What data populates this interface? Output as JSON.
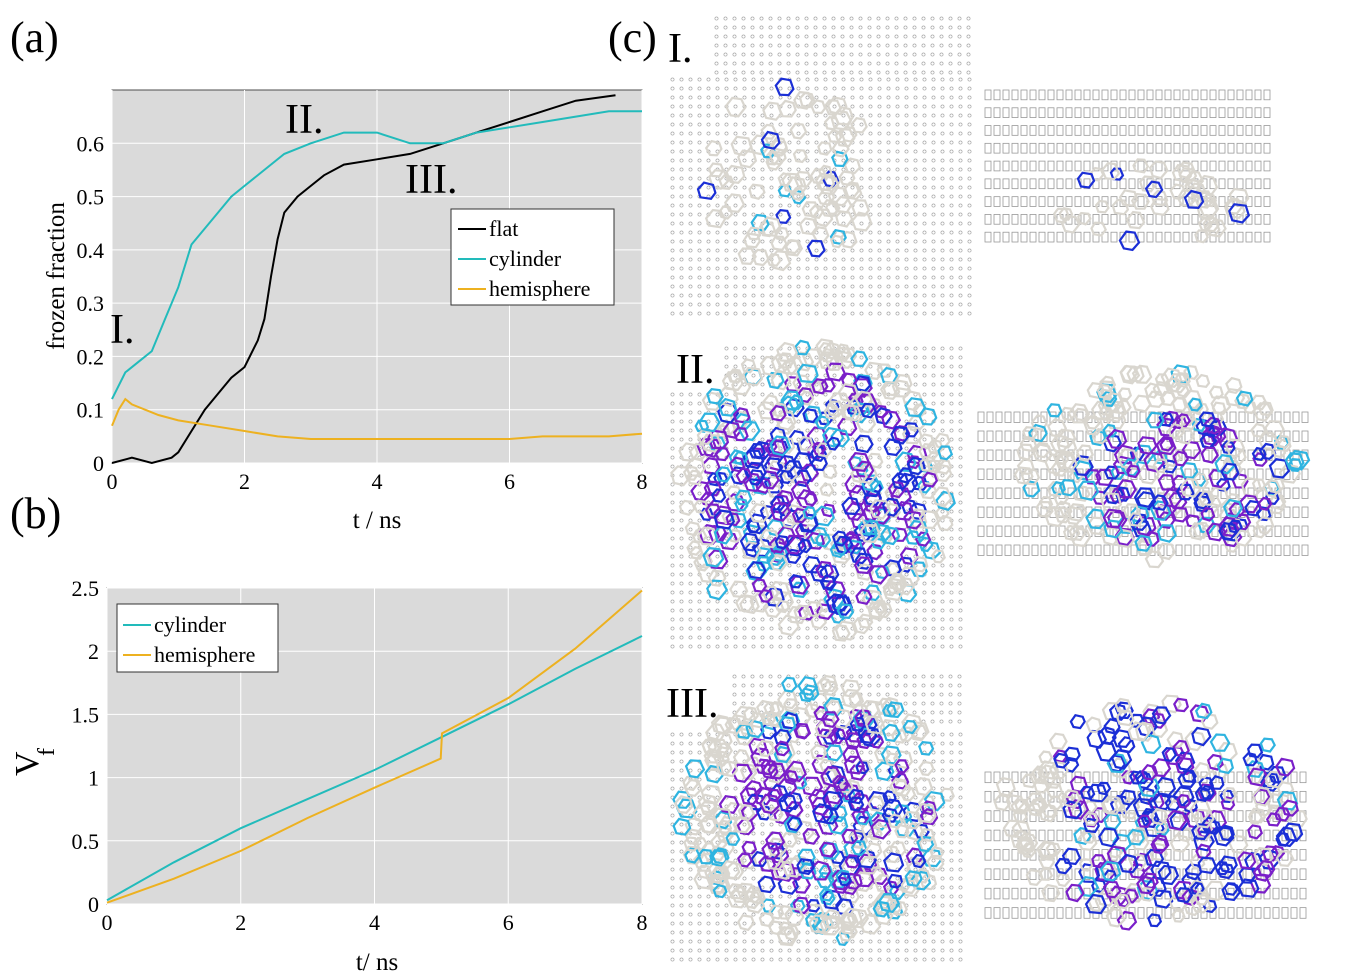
{
  "panel_labels": {
    "a": "(a)",
    "b": "(b)",
    "c": "(c)"
  },
  "image_labels": [
    "I.",
    "II.",
    "III."
  ],
  "colors": {
    "plot_bg": "#dadada",
    "flat": "#000000",
    "cylinder": "#22bbbb",
    "hemisphere": "#edb120",
    "ice_white": "#d9d6cf",
    "ice_cyan": "#2fb4e0",
    "ice_blue": "#1b2fd6",
    "ice_purple": "#7a1fc9"
  },
  "chart_data": [
    {
      "type": "line",
      "panel": "(a)",
      "xlabel": "t / ns",
      "ylabel": "frozen fraction",
      "xlim": [
        0,
        8
      ],
      "ylim": [
        0,
        0.7
      ],
      "xticks": [
        "0",
        "2",
        "4",
        "6",
        "8"
      ],
      "yticks": [
        "0",
        "0.1",
        "0.2",
        "0.3",
        "0.4",
        "0.5",
        "0.6"
      ],
      "grid": true,
      "legend_position": "center-right",
      "annotations": [
        "I.",
        "II.",
        "III."
      ],
      "series": [
        {
          "name": "flat",
          "x": [
            0,
            0.3,
            0.6,
            0.9,
            1.0,
            1.2,
            1.4,
            1.6,
            1.8,
            2.0,
            2.2,
            2.3,
            2.4,
            2.5,
            2.6,
            2.8,
            3.0,
            3.2,
            3.5,
            4.0,
            4.5,
            5.0,
            5.5,
            6.0,
            6.5,
            7.0,
            7.6
          ],
          "values": [
            0.0,
            0.01,
            0.0,
            0.01,
            0.02,
            0.06,
            0.1,
            0.13,
            0.16,
            0.18,
            0.23,
            0.27,
            0.35,
            0.42,
            0.47,
            0.5,
            0.52,
            0.54,
            0.56,
            0.57,
            0.58,
            0.6,
            0.62,
            0.64,
            0.66,
            0.68,
            0.69
          ]
        },
        {
          "name": "cylinder",
          "x": [
            0,
            0.2,
            0.4,
            0.6,
            0.8,
            1.0,
            1.2,
            1.4,
            1.6,
            1.8,
            2.0,
            2.3,
            2.6,
            3.0,
            3.5,
            4.0,
            4.5,
            5.0,
            5.5,
            6.0,
            6.5,
            7.0,
            7.5,
            8.0
          ],
          "values": [
            0.12,
            0.17,
            0.19,
            0.21,
            0.27,
            0.33,
            0.41,
            0.44,
            0.47,
            0.5,
            0.52,
            0.55,
            0.58,
            0.6,
            0.62,
            0.62,
            0.6,
            0.6,
            0.62,
            0.63,
            0.64,
            0.65,
            0.66,
            0.66
          ]
        },
        {
          "name": "hemisphere",
          "x": [
            0,
            0.1,
            0.2,
            0.3,
            0.5,
            0.7,
            1.0,
            1.5,
            2.0,
            2.5,
            3.0,
            3.5,
            4.0,
            4.5,
            5.0,
            5.5,
            6.0,
            6.5,
            7.0,
            7.5,
            8.0
          ],
          "values": [
            0.07,
            0.1,
            0.12,
            0.11,
            0.1,
            0.09,
            0.08,
            0.07,
            0.06,
            0.05,
            0.045,
            0.045,
            0.045,
            0.045,
            0.045,
            0.045,
            0.045,
            0.05,
            0.05,
            0.05,
            0.055
          ]
        }
      ]
    },
    {
      "type": "line",
      "panel": "(b)",
      "xlabel": "t/ ns",
      "ylabel": "V",
      "ylabel_subscript": "f",
      "xlim": [
        0,
        8
      ],
      "ylim": [
        0,
        2.5
      ],
      "xticks": [
        "0",
        "2",
        "4",
        "6",
        "8"
      ],
      "yticks": [
        "0",
        "0.5",
        "1",
        "1.5",
        "2",
        "2.5"
      ],
      "grid": true,
      "legend_position": "top-left",
      "series": [
        {
          "name": "cylinder",
          "x": [
            0,
            1,
            2,
            3,
            4,
            5,
            6,
            7,
            8
          ],
          "values": [
            0.03,
            0.33,
            0.6,
            0.83,
            1.06,
            1.32,
            1.58,
            1.86,
            2.12
          ]
        },
        {
          "name": "hemisphere",
          "x": [
            0,
            1,
            2,
            3,
            4,
            4.99,
            5.01,
            6,
            7,
            8
          ],
          "values": [
            0.01,
            0.2,
            0.42,
            0.68,
            0.92,
            1.15,
            1.35,
            1.63,
            2.02,
            2.48
          ]
        }
      ]
    }
  ]
}
